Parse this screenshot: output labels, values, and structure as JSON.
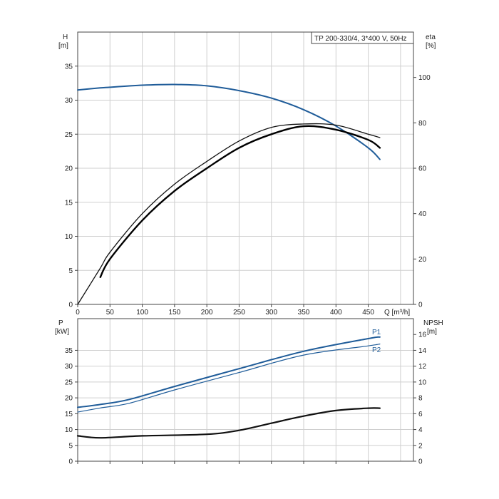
{
  "chart_data": [
    {
      "type": "line",
      "title": "TP 200-330/4, 3*400 V, 50Hz",
      "xlabel": "Q [m³/h]",
      "ylabel_left": [
        "H",
        "[m]"
      ],
      "ylabel_right": [
        "eta",
        "[%]"
      ],
      "xlim": [
        0,
        520
      ],
      "ylim_left": [
        0,
        40
      ],
      "ylim_right": [
        0,
        120
      ],
      "grid": true,
      "x_ticks": [
        "0",
        "50",
        "100",
        "150",
        "200",
        "250",
        "300",
        "350",
        "400",
        "450"
      ],
      "y_left_ticks": [
        "0",
        "5",
        "10",
        "15",
        "20",
        "25",
        "30",
        "35"
      ],
      "y_right_ticks": [
        "0",
        "20",
        "40",
        "60",
        "80",
        "100"
      ],
      "series": [
        {
          "axis": "left",
          "color": "#1f5c99",
          "x": [
            0,
            35,
            50,
            100,
            150,
            200,
            250,
            300,
            350,
            400,
            450,
            468
          ],
          "y": [
            31.5,
            31.8,
            31.9,
            32.2,
            32.3,
            32.1,
            31.4,
            30.3,
            28.6,
            26.2,
            23.0,
            21.3
          ]
        },
        {
          "axis": "right",
          "color": "#111111",
          "x": [
            0,
            35,
            50,
            100,
            150,
            200,
            250,
            300,
            350,
            400,
            450,
            468
          ],
          "y": [
            0,
            16,
            23,
            40,
            53,
            63,
            72,
            78,
            79.5,
            79,
            75,
            73.5
          ]
        },
        {
          "axis": "right",
          "color": "#000000",
          "x": [
            35,
            50,
            100,
            150,
            200,
            250,
            300,
            350,
            400,
            450,
            468
          ],
          "y": [
            12,
            20,
            37,
            50,
            60,
            69,
            75,
            78.5,
            77,
            72.5,
            69
          ]
        }
      ]
    },
    {
      "type": "line",
      "xlabel": "",
      "ylabel_left": [
        "P",
        "[kW]"
      ],
      "ylabel_right": [
        "NPSH",
        "[m]"
      ],
      "xlim": [
        0,
        520
      ],
      "ylim_left": [
        0,
        45
      ],
      "ylim_right": [
        0,
        18
      ],
      "grid": true,
      "y_left_ticks": [
        "0",
        "5",
        "10",
        "15",
        "20",
        "25",
        "30",
        "35"
      ],
      "y_right_ticks": [
        "0",
        "2",
        "4",
        "6",
        "8",
        "10",
        "12",
        "14",
        "16"
      ],
      "series": [
        {
          "name": "P1",
          "axis": "left",
          "color": "#1f5c99",
          "x": [
            0,
            35,
            80,
            150,
            250,
            350,
            450,
            468
          ],
          "y": [
            17,
            17.9,
            19.5,
            23.6,
            29.2,
            34.7,
            38.7,
            39.2
          ]
        },
        {
          "name": "P2",
          "axis": "left",
          "color": "#1f5c99",
          "x": [
            0,
            35,
            80,
            150,
            250,
            350,
            450,
            468
          ],
          "y": [
            15.5,
            16.8,
            18.3,
            22.5,
            28.0,
            33.5,
            36.4,
            37.0
          ]
        },
        {
          "axis": "right",
          "color": "#111111",
          "x": [
            0,
            35,
            100,
            200,
            250,
            300,
            350,
            400,
            450,
            468
          ],
          "y": [
            3.2,
            2.95,
            3.2,
            3.4,
            3.9,
            4.8,
            5.7,
            6.4,
            6.7,
            6.7
          ]
        }
      ]
    }
  ]
}
